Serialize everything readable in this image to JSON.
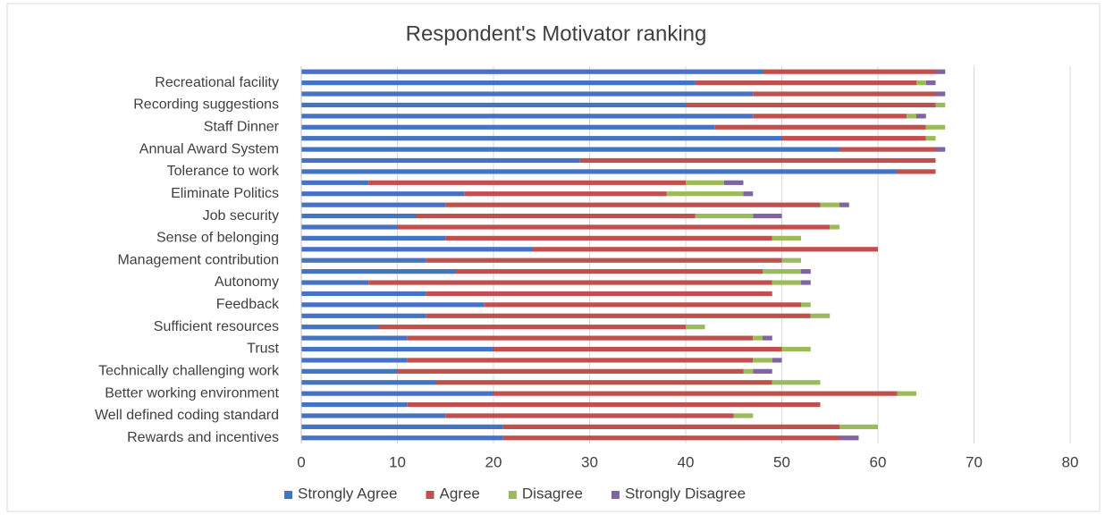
{
  "chart_data": {
    "type": "stacked-bar",
    "orientation": "horizontal",
    "title": "Respondent's  Motivator ranking",
    "categories": [
      null,
      "Recreational facility",
      null,
      "Recording suggestions",
      null,
      "Staff Dinner",
      null,
      "Annual Award System",
      null,
      "Tolerance to work",
      null,
      "Eliminate Politics",
      null,
      "Job security",
      null,
      "Sense of belonging",
      null,
      "Management contribution",
      null,
      "Autonomy",
      null,
      "Feedback",
      null,
      "Sufficient resources",
      null,
      "Trust",
      null,
      "Technically challenging work",
      null,
      "Better working environment",
      null,
      "Well defined coding standard",
      null,
      "Rewards and incentives"
    ],
    "series": [
      {
        "name": "Strongly Agree",
        "color": "#4472c4",
        "values": [
          48,
          41,
          47,
          40,
          47,
          43,
          50,
          56,
          29,
          62,
          7,
          17,
          15,
          12,
          10,
          15,
          24,
          13,
          16,
          7,
          13,
          19,
          13,
          8,
          11,
          20,
          11,
          10,
          14,
          20,
          11,
          15,
          21,
          21
        ]
      },
      {
        "name": "Agree",
        "color": "#c0504d",
        "values": [
          18,
          23,
          19,
          26,
          16,
          22,
          15,
          10,
          37,
          4,
          33,
          21,
          39,
          29,
          45,
          34,
          36,
          37,
          32,
          42,
          36,
          33,
          40,
          32,
          36,
          30,
          36,
          36,
          35,
          42,
          43,
          30,
          35,
          35
        ]
      },
      {
        "name": "Disagree",
        "color": "#9bbb59",
        "values": [
          0,
          1,
          0,
          1,
          1,
          2,
          1,
          0,
          0,
          0,
          4,
          8,
          2,
          6,
          1,
          3,
          0,
          2,
          4,
          3,
          0,
          1,
          2,
          2,
          1,
          3,
          2,
          1,
          5,
          2,
          0,
          2,
          4,
          0
        ]
      },
      {
        "name": "Strongly Disagree",
        "color": "#8064a2",
        "values": [
          1,
          1,
          1,
          0,
          1,
          0,
          0,
          1,
          0,
          0,
          2,
          1,
          1,
          3,
          0,
          0,
          0,
          0,
          1,
          1,
          0,
          0,
          0,
          0,
          1,
          0,
          1,
          2,
          0,
          0,
          0,
          0,
          0,
          2
        ]
      }
    ],
    "xlim": [
      0,
      80
    ],
    "xticks": [
      0,
      10,
      20,
      30,
      40,
      50,
      60,
      70,
      80
    ],
    "grid": true,
    "legend": "bottom"
  }
}
